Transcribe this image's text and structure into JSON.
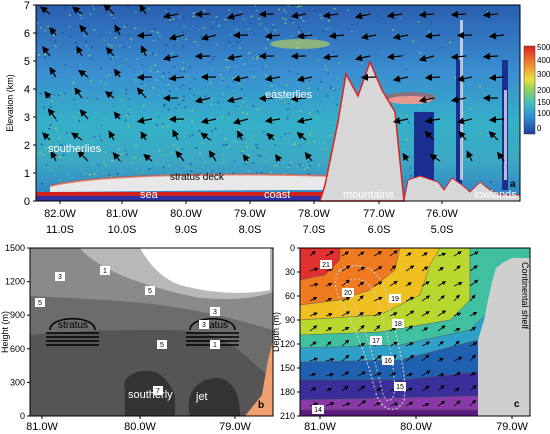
{
  "chart_data": [
    {
      "panel": "a",
      "type": "heatmap",
      "ylabel": "Elevation (km)",
      "ylim": [
        0,
        7
      ],
      "yticks": [
        "0",
        "1",
        "2",
        "3",
        "4",
        "5",
        "6",
        "7"
      ],
      "xticks_lon": [
        "82.0W",
        "81.0W",
        "80.0W",
        "79.0W",
        "78.0W",
        "77.0W",
        "76.0W"
      ],
      "xticks_lat": [
        "11.0S",
        "10.0S",
        "9.0S",
        "8.0S",
        "7.0S",
        "6.0S",
        "5.0S"
      ],
      "colorbar": {
        "ticks": [
          "0",
          "100",
          "150",
          "200",
          "300",
          "400",
          "500"
        ]
      },
      "annotations": [
        "easterlies",
        "southerlies",
        "stratus deck",
        "sea",
        "coast",
        "mountains",
        "lowlands"
      ],
      "panel_label": "a"
    },
    {
      "panel": "b",
      "type": "area",
      "ylabel": "Height (m)",
      "ylim": [
        0,
        1500
      ],
      "yticks": [
        "0",
        "300",
        "600",
        "900",
        "1200",
        "1500"
      ],
      "xticks": [
        "81.0W",
        "80.0W",
        "79.0W"
      ],
      "contour_labels": [
        "7",
        "5",
        "3",
        "1",
        "5",
        "3",
        "1",
        "3",
        "5"
      ],
      "annotations": [
        "stratus",
        "stratus",
        "southerly",
        "jet"
      ],
      "panel_label": "b"
    },
    {
      "panel": "c",
      "type": "heatmap",
      "ylabel": "Depth (m)",
      "ylim": [
        210,
        0
      ],
      "yticks": [
        "0",
        "30",
        "60",
        "90",
        "120",
        "150",
        "180",
        "210"
      ],
      "xticks": [
        "81.0W",
        "80.0W",
        "79.0W"
      ],
      "contour_labels": [
        "21",
        "20",
        "19",
        "18",
        "17",
        "16",
        "15",
        "14"
      ],
      "annotations": [
        "Continental shelf"
      ],
      "panel_label": "c"
    }
  ]
}
